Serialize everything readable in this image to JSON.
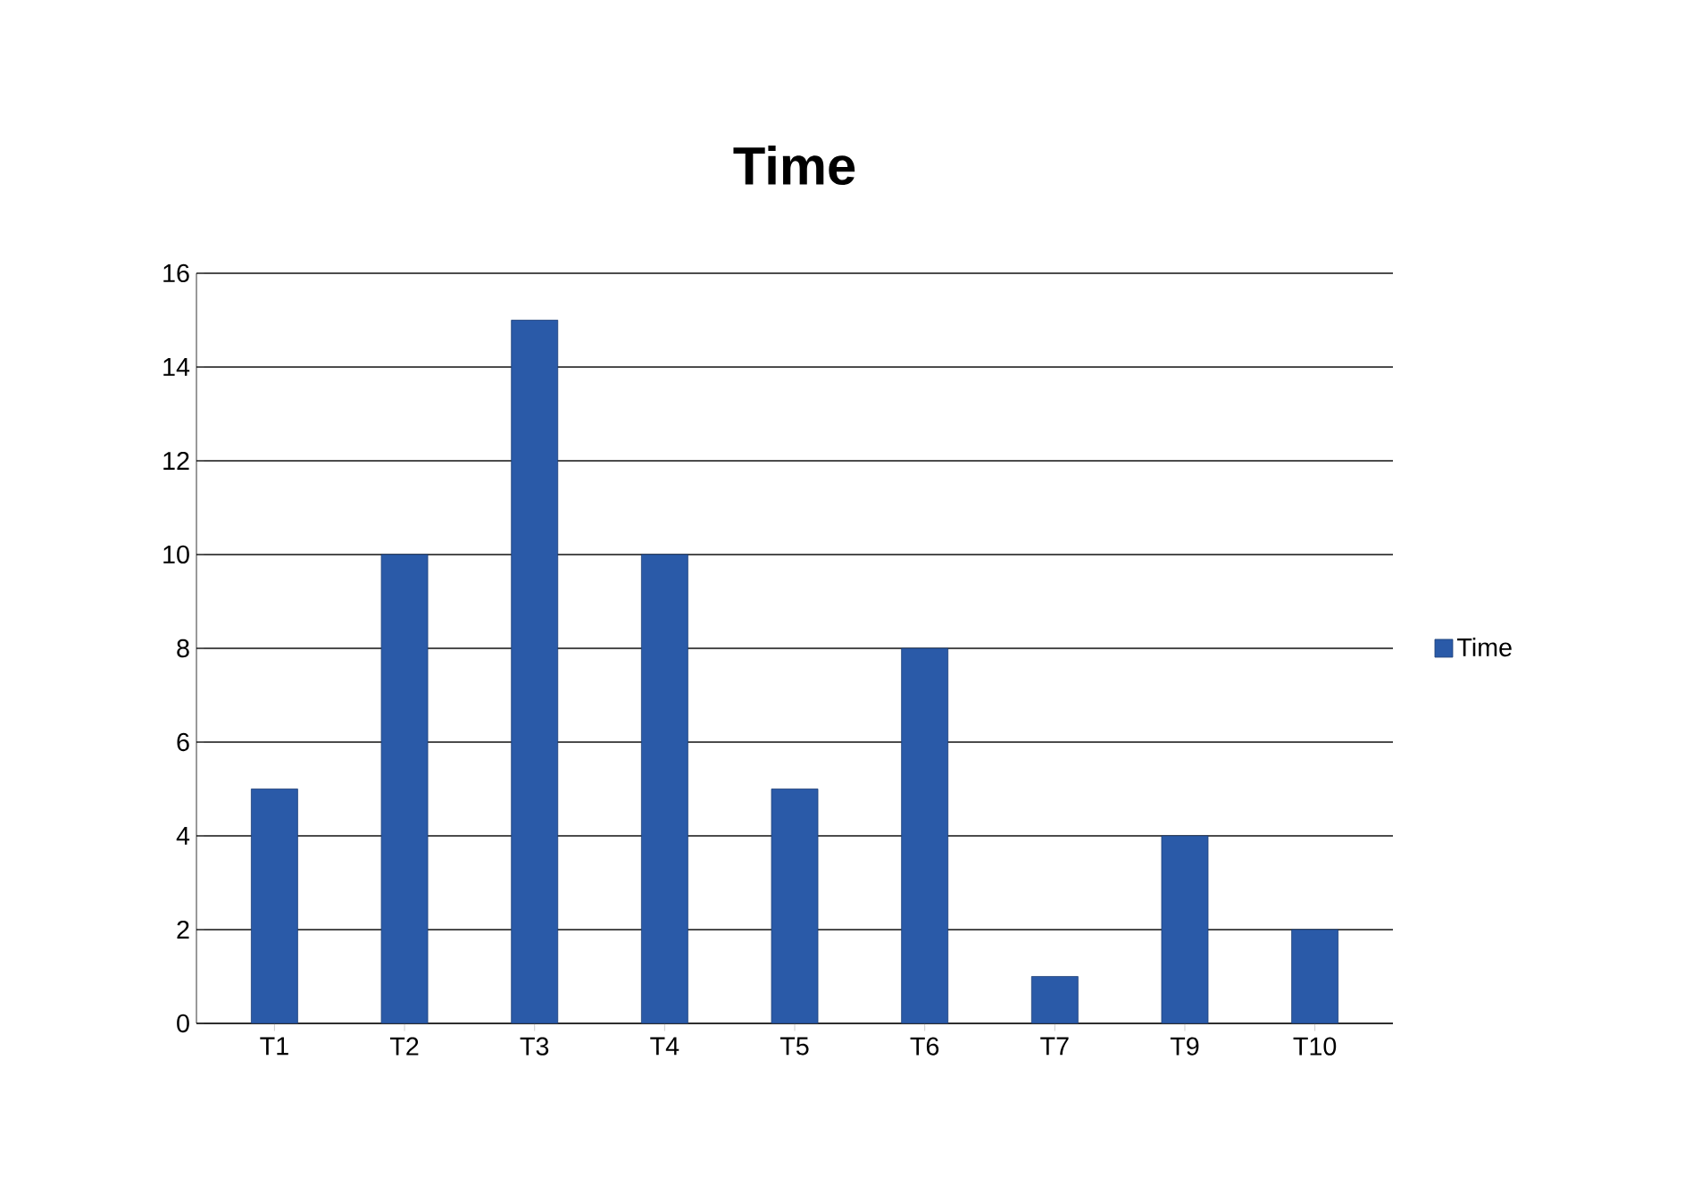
{
  "chart_data": {
    "type": "bar",
    "title": "Time",
    "categories": [
      "T1",
      "T2",
      "T3",
      "T4",
      "T5",
      "T6",
      "T7",
      "T9",
      "T10"
    ],
    "series": [
      {
        "name": "Time",
        "color": "#2a5aa8",
        "values": [
          5,
          10,
          15,
          10,
          5,
          8,
          1,
          4,
          2
        ]
      }
    ],
    "ylim": [
      0,
      16
    ],
    "yticks": [
      0,
      2,
      4,
      6,
      8,
      10,
      12,
      14,
      16
    ],
    "grid": "y",
    "legend": "right"
  }
}
